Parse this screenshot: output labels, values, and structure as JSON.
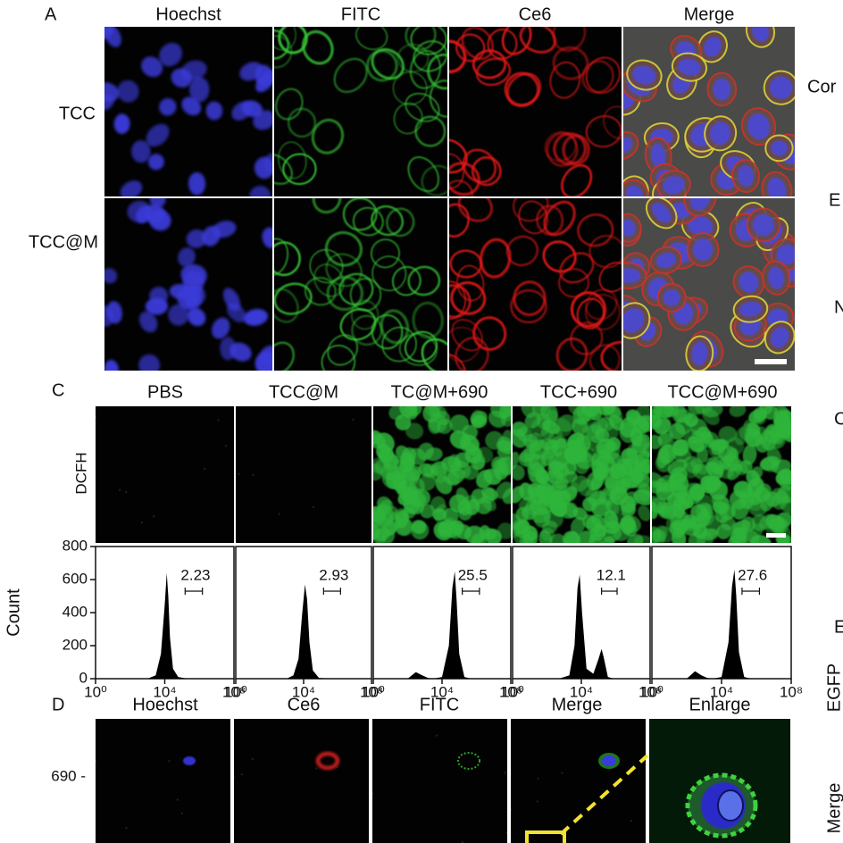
{
  "panels": [
    {
      "letter": "A",
      "columns": [
        "Hoechst",
        "FITC",
        "Ce6",
        "Merge"
      ],
      "rows": [
        "TCC",
        "TCC@M"
      ]
    },
    {
      "letter": "C",
      "columns": [
        "PBS",
        "TCC@M",
        "TC@M+690",
        "TCC+690",
        "TCC@M+690"
      ],
      "rows": [
        "DCFH"
      ]
    },
    {
      "letter": "D",
      "columns": [
        "Hoechst",
        "Ce6",
        "FITC",
        "Merge",
        "Enlarge"
      ],
      "rows": [
        "690 -"
      ]
    }
  ],
  "cropped_labels": [
    "Cor",
    "E",
    "N",
    "C",
    "E",
    "EGFP",
    "Merge"
  ],
  "chart_data": [
    {
      "type": "area",
      "ylabel": "Count",
      "xscale": "log",
      "xlim": [
        1,
        100000000
      ],
      "ylim": [
        0,
        800
      ],
      "xticks": [
        {
          "value": 1,
          "label": "10⁰"
        },
        {
          "value": 10000,
          "label": "10⁴"
        },
        {
          "value": 100000000,
          "label": "10⁸"
        }
      ],
      "yticks": [
        0,
        200,
        400,
        600,
        800
      ],
      "color": "#000000",
      "x": [
        1000,
        3000,
        6000,
        10000,
        13000,
        16000,
        20000,
        30000,
        60000,
        200000
      ],
      "values": [
        0,
        20,
        150,
        450,
        640,
        500,
        250,
        60,
        10,
        0
      ],
      "gate": [
        150000,
        1500000
      ],
      "gate_label": 2.23
    },
    {
      "type": "area",
      "xscale": "log",
      "xlim": [
        1,
        100000000
      ],
      "ylim": [
        0,
        800
      ],
      "xticks": [
        {
          "value": 1,
          "label": "10⁰"
        },
        {
          "value": 10000,
          "label": "10⁴"
        },
        {
          "value": 100000000,
          "label": "10⁸"
        }
      ],
      "color": "#000000",
      "x": [
        1000,
        2500,
        5000,
        8000,
        12000,
        16000,
        22000,
        35000,
        80000,
        300000
      ],
      "values": [
        0,
        20,
        120,
        380,
        570,
        480,
        220,
        50,
        5,
        0
      ],
      "gate": [
        150000,
        1500000
      ],
      "gate_label": 2.93
    },
    {
      "type": "area",
      "xscale": "log",
      "xlim": [
        1,
        100000000
      ],
      "ylim": [
        0,
        800
      ],
      "xticks": [
        {
          "value": 1,
          "label": "10⁰"
        },
        {
          "value": 10000,
          "label": "10⁴"
        },
        {
          "value": 100000000,
          "label": "10⁸"
        }
      ],
      "color": "#000000",
      "x": [
        100,
        300,
        700,
        1500,
        3000,
        10000,
        25000,
        40000,
        55000,
        70000,
        100000,
        200000,
        500000
      ],
      "values": [
        0,
        40,
        20,
        5,
        0,
        10,
        200,
        550,
        650,
        480,
        150,
        10,
        0
      ],
      "gate": [
        150000,
        1500000
      ],
      "gate_label": 25.5
    },
    {
      "type": "area",
      "xscale": "log",
      "xlim": [
        1,
        100000000
      ],
      "ylim": [
        0,
        800
      ],
      "xticks": [
        {
          "value": 1,
          "label": "10⁰"
        },
        {
          "value": 10000,
          "label": "10⁴"
        },
        {
          "value": 100000000,
          "label": "10⁸"
        }
      ],
      "color": "#000000",
      "x": [
        500,
        2000,
        4000,
        6000,
        8000,
        11000,
        20000,
        50000,
        100000,
        150000,
        200000,
        350000,
        800000
      ],
      "values": [
        0,
        20,
        200,
        550,
        630,
        400,
        60,
        30,
        120,
        180,
        130,
        10,
        0
      ],
      "gate": [
        150000,
        1200000
      ],
      "gate_label": 12.1
    },
    {
      "type": "area",
      "xscale": "log",
      "xlim": [
        1,
        100000000
      ],
      "ylim": [
        0,
        800
      ],
      "xticks": [
        {
          "value": 1,
          "label": "10⁰"
        },
        {
          "value": 10000,
          "label": "10⁴"
        },
        {
          "value": 100000000,
          "label": "10⁸"
        }
      ],
      "color": "#000000",
      "x": [
        100,
        300,
        700,
        1500,
        3000,
        10000,
        25000,
        40000,
        55000,
        70000,
        100000,
        200000,
        500000
      ],
      "values": [
        0,
        45,
        20,
        5,
        0,
        10,
        220,
        560,
        660,
        500,
        160,
        10,
        0
      ],
      "gate": [
        150000,
        1500000
      ],
      "gate_label": 27.6
    }
  ]
}
